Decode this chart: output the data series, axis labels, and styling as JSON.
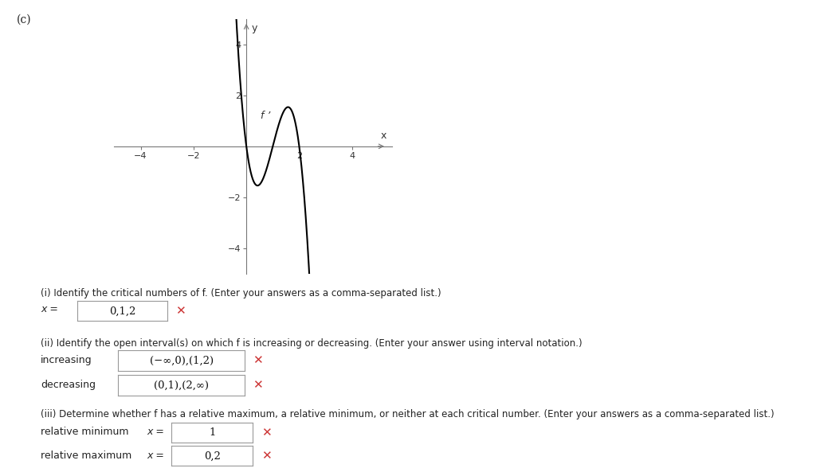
{
  "title_label": "(c)",
  "graph_xlabel": "x",
  "graph_ylabel": "y",
  "curve_label": "f ’",
  "xlim": [
    -5,
    5.5
  ],
  "ylim": [
    -5,
    5
  ],
  "xticks": [
    -4,
    -2,
    2,
    4
  ],
  "yticks": [
    -4,
    -2,
    2,
    4
  ],
  "background_color": "#ffffff",
  "curve_color": "#000000",
  "axis_color": "#777777",
  "text_color": "#222222",
  "question_i": "(i) Identify the critical numbers of f. (Enter your answers as a comma-separated list.)",
  "answer_i_label": "x =",
  "answer_i_value": "0,1,2",
  "question_ii": "(ii) Identify the open interval(s) on which f is increasing or decreasing. (Enter your answer using interval notation.)",
  "label_increasing": "increasing",
  "answer_increasing": "(−∞,0),(1,2)",
  "label_decreasing": "decreasing",
  "answer_decreasing": "(0,1),(2,∞)",
  "question_iii": "(iii) Determine whether f has a relative maximum, a relative minimum, or neither at each critical number. (Enter your answers as a comma-separated list.)",
  "label_rel_min": "relative minimum",
  "answer_rel_min_label": "x =",
  "answer_rel_min_value": "1",
  "label_rel_max": "relative maximum",
  "answer_rel_max_label": "x =",
  "answer_rel_max_value": "0,2",
  "cross_color": "#cc3333",
  "box_edge_color": "#aaaaaa",
  "coeff": -6.0,
  "x_start": -2.3,
  "x_end": 2.5
}
